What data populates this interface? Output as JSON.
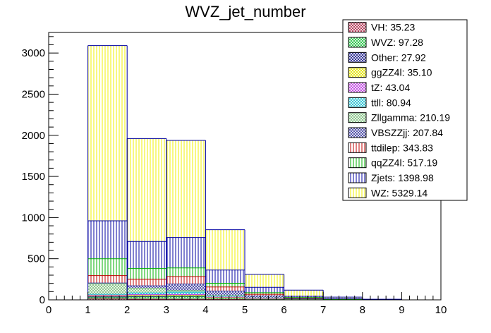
{
  "chart_data": {
    "type": "bar",
    "subtype": "stacked-histogram",
    "title": "WVZ_jet_number",
    "xlabel": "",
    "ylabel": "",
    "xlim": [
      0,
      10
    ],
    "ylim": [
      0,
      3250
    ],
    "x_ticks": [
      "0",
      "1",
      "2",
      "3",
      "4",
      "5",
      "6",
      "7",
      "8",
      "9",
      "10"
    ],
    "y_ticks": [
      "0",
      "500",
      "1000",
      "1500",
      "2000",
      "2500",
      "3000"
    ],
    "bin_edges": [
      1,
      2,
      3,
      4,
      5,
      6,
      7,
      8,
      9
    ],
    "series": [
      {
        "name": "VH",
        "label": "VH: 35.23",
        "color": "#b03050",
        "pattern": "cross",
        "values": [
          12,
          9,
          8,
          4,
          2,
          1,
          0,
          0
        ]
      },
      {
        "name": "WVZ",
        "label": "WVZ: 97.28",
        "color": "#20c040",
        "pattern": "cross",
        "values": [
          15,
          25,
          30,
          15,
          8,
          3,
          1,
          0
        ]
      },
      {
        "name": "Other",
        "label": "Other: 27.92",
        "color": "#20208c",
        "pattern": "cross",
        "values": [
          10,
          7,
          6,
          3,
          1,
          0,
          0,
          0
        ]
      },
      {
        "name": "ggZZ4l",
        "label": "ggZZ4l: 35.10",
        "color": "#e0e000",
        "pattern": "cross",
        "values": [
          12,
          10,
          8,
          4,
          1,
          0,
          0,
          0
        ]
      },
      {
        "name": "tZ",
        "label": "tZ: 43.04",
        "color": "#c040e0",
        "pattern": "cross",
        "values": [
          8,
          12,
          13,
          7,
          3,
          0,
          0,
          0
        ]
      },
      {
        "name": "ttll",
        "label": "ttll: 80.94",
        "color": "#20c0d0",
        "pattern": "cross",
        "values": [
          10,
          22,
          28,
          14,
          6,
          1,
          0,
          0
        ]
      },
      {
        "name": "Zllgamma",
        "label": "Zllgamma: 210.19",
        "color": "#80c080",
        "pattern": "cross",
        "values": [
          130,
          55,
          20,
          5,
          1,
          0,
          0,
          0
        ]
      },
      {
        "name": "VBSZZjj",
        "label": "VBSZZjj: 207.84",
        "color": "#4040a0",
        "pattern": "cross",
        "values": [
          8,
          30,
          80,
          55,
          25,
          8,
          2,
          0
        ]
      },
      {
        "name": "ttdilep",
        "label": "ttdilep: 343.83",
        "color": "#c00000",
        "pattern": "vertical",
        "values": [
          90,
          80,
          90,
          50,
          20,
          8,
          3,
          1
        ]
      },
      {
        "name": "qqZZ4l",
        "label": "qqZZ4l: 517.19",
        "color": "#00b000",
        "pattern": "vertical",
        "values": [
          205,
          130,
          105,
          45,
          20,
          7,
          3,
          1
        ]
      },
      {
        "name": "Zjets",
        "label": "Zjets: 1398.98",
        "color": "#0000a0",
        "pattern": "vertical",
        "values": [
          460,
          330,
          370,
          160,
          65,
          15,
          4,
          1
        ]
      },
      {
        "name": "WZ",
        "label": "WZ: 5329.14",
        "color": "#f2f200",
        "pattern": "vertical",
        "values": [
          2130,
          1250,
          1180,
          490,
          158,
          75,
          20,
          5
        ]
      }
    ]
  }
}
